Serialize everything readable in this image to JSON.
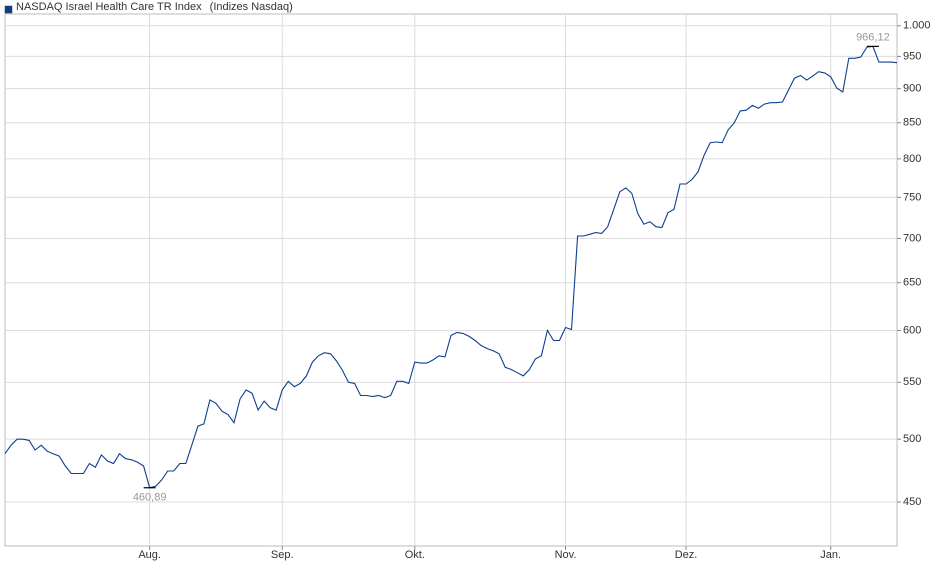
{
  "chart_data": {
    "type": "line",
    "title": "(Indizes Nasdaq)",
    "log_scale": true,
    "grid": true,
    "ylim": [
      418,
      1020
    ],
    "yticks": [
      450,
      500,
      550,
      600,
      650,
      700,
      750,
      800,
      850,
      900,
      950,
      {
        "value": 1000,
        "label": "1.000"
      }
    ],
    "categories": [
      null,
      null,
      null,
      null,
      null,
      null,
      null,
      null,
      null,
      null,
      null,
      null,
      null,
      null,
      null,
      null,
      null,
      null,
      null,
      null,
      null,
      null,
      null,
      null,
      "Aug.",
      null,
      null,
      null,
      null,
      null,
      null,
      null,
      null,
      null,
      null,
      null,
      null,
      null,
      null,
      null,
      null,
      null,
      null,
      null,
      null,
      null,
      "Sep.",
      null,
      null,
      null,
      null,
      null,
      null,
      null,
      null,
      null,
      null,
      null,
      null,
      null,
      null,
      null,
      null,
      null,
      null,
      null,
      null,
      null,
      "Okt.",
      null,
      null,
      null,
      null,
      null,
      null,
      null,
      null,
      null,
      null,
      null,
      null,
      null,
      null,
      null,
      null,
      null,
      null,
      null,
      null,
      null,
      null,
      null,
      null,
      "Nov.",
      null,
      null,
      null,
      null,
      null,
      null,
      null,
      null,
      null,
      null,
      null,
      null,
      null,
      null,
      null,
      null,
      null,
      null,
      null,
      "Dez.",
      null,
      null,
      null,
      null,
      null,
      null,
      null,
      null,
      null,
      null,
      null,
      null,
      null,
      null,
      null,
      null,
      null,
      null,
      null,
      null,
      null,
      null,
      null,
      "Jan.",
      null,
      null,
      null,
      null,
      null,
      null,
      null,
      null,
      null,
      null,
      null
    ],
    "series": [
      {
        "name": "NASDAQ Israel Health Care TR Index",
        "color": "#0d3f8f",
        "values": [
          488,
          495,
          500,
          500,
          499,
          491,
          495,
          490,
          488,
          486,
          478,
          472,
          472,
          472,
          480,
          477,
          487,
          482,
          480,
          488,
          484,
          483,
          481,
          478,
          460.89,
          462,
          467,
          474,
          474,
          480,
          480,
          495,
          511,
          513,
          534,
          531,
          524,
          521,
          514,
          535,
          543,
          540,
          525,
          533,
          527,
          525,
          543,
          551,
          546,
          549,
          556,
          569,
          575,
          578,
          577,
          570,
          561,
          550,
          549,
          538,
          538,
          537,
          538,
          536,
          538,
          551,
          551,
          549,
          569,
          568,
          568,
          571,
          575,
          574,
          595,
          598,
          597,
          594,
          590,
          585,
          582,
          580,
          577,
          564,
          562,
          559,
          556,
          562,
          572,
          575,
          600,
          590,
          590,
          603,
          601,
          703,
          703,
          705,
          707,
          706,
          714,
          735,
          757,
          762,
          755,
          730,
          717,
          720,
          714,
          713,
          731,
          735,
          767,
          767,
          773,
          783,
          805,
          822,
          823,
          822,
          840,
          850,
          867,
          868,
          875,
          871,
          877,
          879,
          879,
          880,
          898,
          916,
          920,
          913,
          919,
          926,
          924,
          918,
          901,
          895,
          947,
          947,
          949,
          965,
          966.12,
          941,
          941,
          941,
          940
        ],
        "value_labels": [
          null,
          null,
          null,
          null,
          null,
          null,
          null,
          null,
          null,
          null,
          null,
          null,
          null,
          null,
          null,
          null,
          null,
          null,
          null,
          null,
          null,
          null,
          null,
          null,
          "460,89",
          null,
          null,
          null,
          null,
          null,
          null,
          null,
          null,
          null,
          null,
          null,
          null,
          null,
          null,
          null,
          null,
          null,
          null,
          null,
          null,
          null,
          null,
          null,
          null,
          null,
          null,
          null,
          null,
          null,
          null,
          null,
          null,
          null,
          null,
          null,
          null,
          null,
          null,
          null,
          null,
          null,
          null,
          null,
          null,
          null,
          null,
          null,
          null,
          null,
          null,
          null,
          null,
          null,
          null,
          null,
          null,
          null,
          null,
          null,
          null,
          null,
          null,
          null,
          null,
          null,
          null,
          null,
          null,
          null,
          null,
          null,
          null,
          null,
          null,
          null,
          null,
          null,
          null,
          null,
          null,
          null,
          null,
          null,
          null,
          null,
          null,
          null,
          null,
          null,
          null,
          null,
          null,
          null,
          null,
          null,
          null,
          null,
          null,
          null,
          null,
          null,
          null,
          null,
          null,
          null,
          null,
          null,
          null,
          null,
          null,
          null,
          null,
          null,
          null,
          null,
          null,
          null,
          null,
          null,
          "966,12",
          null,
          null,
          null,
          null
        ]
      }
    ]
  }
}
